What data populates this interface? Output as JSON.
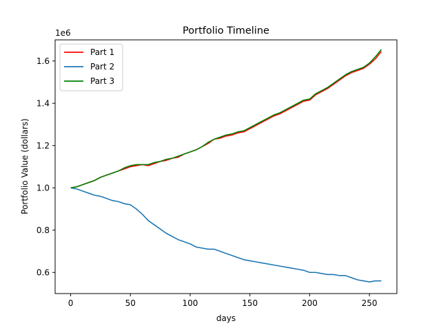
{
  "chart_data": {
    "type": "line",
    "title": "Portfolio Timeline",
    "xlabel": "days",
    "ylabel": "Portfolio Value (dollars)",
    "y_offset_label": "1e6",
    "y_multiplier": 1000000,
    "xlim": [
      -13,
      273
    ],
    "ylim": [
      0.5,
      1.7
    ],
    "x_ticks": [
      0,
      50,
      100,
      150,
      200,
      250
    ],
    "y_ticks": [
      0.6,
      0.8,
      1.0,
      1.2,
      1.4,
      1.6
    ],
    "y_tick_labels": [
      "0.6",
      "0.8",
      "1.0",
      "1.2",
      "1.4",
      "1.6"
    ],
    "grid": false,
    "legend_position": "upper-left",
    "series": [
      {
        "name": "Part 1",
        "color": "#ff0000",
        "x": [
          0,
          5,
          10,
          15,
          20,
          25,
          30,
          35,
          40,
          45,
          50,
          55,
          60,
          65,
          70,
          75,
          80,
          85,
          90,
          95,
          100,
          105,
          110,
          115,
          120,
          125,
          130,
          135,
          140,
          145,
          150,
          155,
          160,
          165,
          170,
          175,
          180,
          185,
          190,
          195,
          200,
          205,
          210,
          215,
          220,
          225,
          230,
          235,
          240,
          245,
          250,
          255,
          260
        ],
        "values": [
          1.0,
          1.005,
          1.015,
          1.025,
          1.035,
          1.05,
          1.06,
          1.07,
          1.08,
          1.09,
          1.1,
          1.105,
          1.11,
          1.105,
          1.115,
          1.125,
          1.13,
          1.14,
          1.145,
          1.16,
          1.17,
          1.18,
          1.195,
          1.21,
          1.23,
          1.235,
          1.245,
          1.25,
          1.26,
          1.265,
          1.28,
          1.295,
          1.31,
          1.325,
          1.34,
          1.35,
          1.365,
          1.38,
          1.395,
          1.41,
          1.415,
          1.44,
          1.455,
          1.47,
          1.49,
          1.51,
          1.53,
          1.545,
          1.555,
          1.565,
          1.585,
          1.61,
          1.645
        ]
      },
      {
        "name": "Part 2",
        "color": "#1f77b4",
        "x": [
          0,
          5,
          10,
          15,
          20,
          25,
          30,
          35,
          40,
          45,
          50,
          55,
          60,
          65,
          70,
          75,
          80,
          85,
          90,
          95,
          100,
          105,
          110,
          115,
          120,
          125,
          130,
          135,
          140,
          145,
          150,
          155,
          160,
          165,
          170,
          175,
          180,
          185,
          190,
          195,
          200,
          205,
          210,
          215,
          220,
          225,
          230,
          235,
          240,
          245,
          250,
          255,
          260
        ],
        "values": [
          1.0,
          0.995,
          0.985,
          0.975,
          0.965,
          0.96,
          0.95,
          0.94,
          0.935,
          0.925,
          0.92,
          0.9,
          0.875,
          0.845,
          0.825,
          0.805,
          0.785,
          0.77,
          0.755,
          0.745,
          0.735,
          0.72,
          0.715,
          0.71,
          0.71,
          0.7,
          0.69,
          0.68,
          0.67,
          0.66,
          0.655,
          0.65,
          0.645,
          0.64,
          0.635,
          0.63,
          0.625,
          0.62,
          0.615,
          0.61,
          0.6,
          0.6,
          0.595,
          0.59,
          0.59,
          0.585,
          0.585,
          0.575,
          0.565,
          0.56,
          0.555,
          0.56,
          0.56
        ]
      },
      {
        "name": "Part 3",
        "color": "#008000",
        "x": [
          0,
          5,
          10,
          15,
          20,
          25,
          30,
          35,
          40,
          45,
          50,
          55,
          60,
          65,
          70,
          75,
          80,
          85,
          90,
          95,
          100,
          105,
          110,
          115,
          120,
          125,
          130,
          135,
          140,
          145,
          150,
          155,
          160,
          165,
          170,
          175,
          180,
          185,
          190,
          195,
          200,
          205,
          210,
          215,
          220,
          225,
          230,
          235,
          240,
          245,
          250,
          255,
          260
        ],
        "values": [
          1.0,
          1.005,
          1.015,
          1.025,
          1.035,
          1.05,
          1.06,
          1.07,
          1.08,
          1.095,
          1.105,
          1.11,
          1.11,
          1.11,
          1.12,
          1.125,
          1.135,
          1.14,
          1.15,
          1.16,
          1.17,
          1.18,
          1.195,
          1.215,
          1.23,
          1.24,
          1.25,
          1.255,
          1.265,
          1.27,
          1.285,
          1.3,
          1.315,
          1.33,
          1.345,
          1.355,
          1.37,
          1.385,
          1.4,
          1.415,
          1.42,
          1.445,
          1.46,
          1.475,
          1.495,
          1.515,
          1.535,
          1.55,
          1.56,
          1.57,
          1.59,
          1.62,
          1.655
        ]
      }
    ]
  }
}
